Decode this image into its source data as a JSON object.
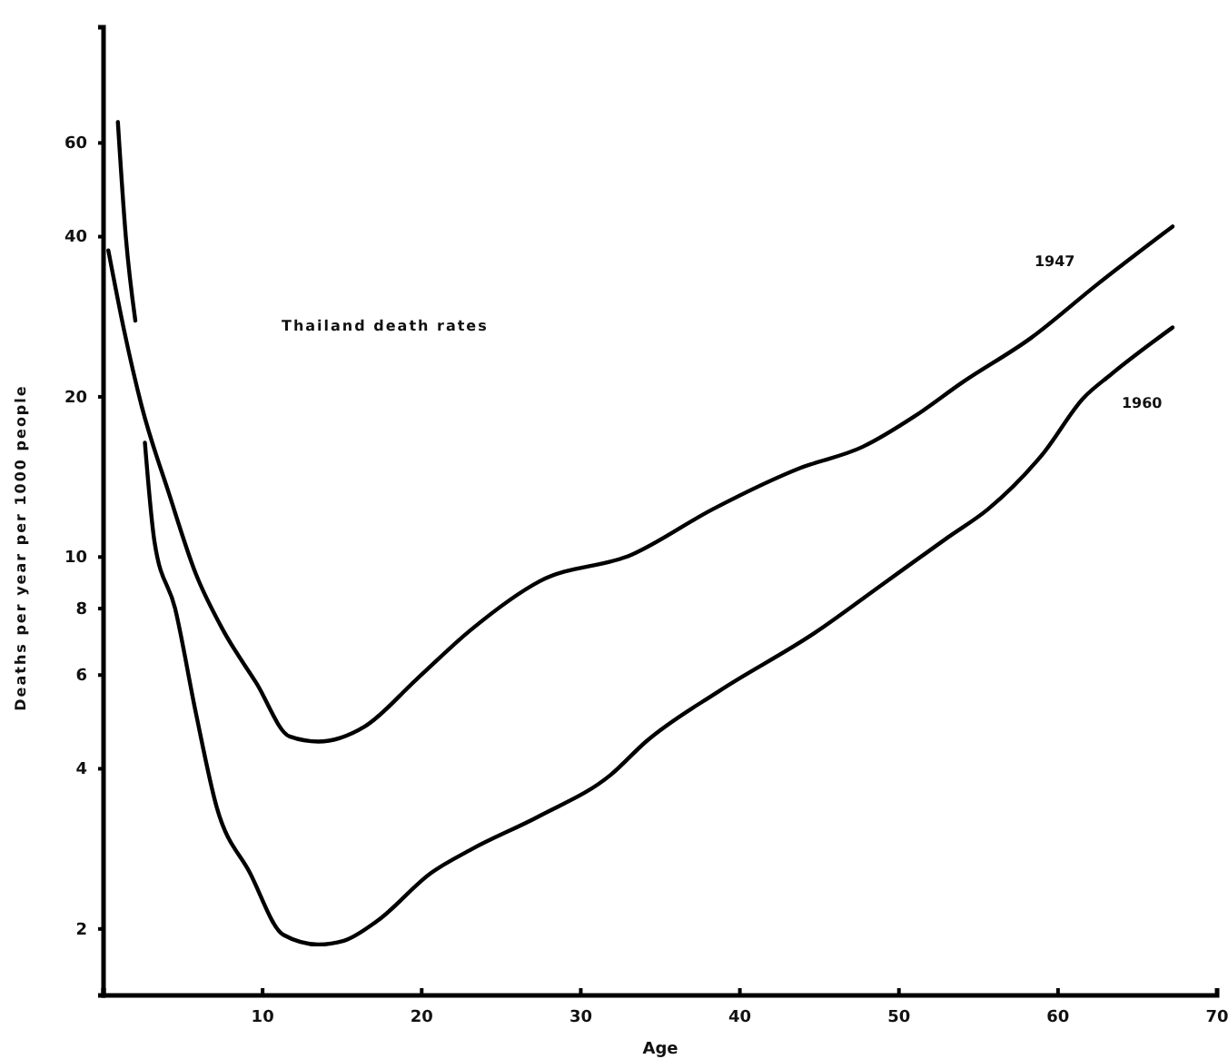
{
  "chart_data": {
    "type": "line",
    "xlabel": "Age",
    "ylabel": "Deaths per year per 1000 people",
    "log": "y",
    "xlim": [
      0,
      70
    ],
    "xticks": [
      10,
      20,
      30,
      40,
      50,
      60,
      70
    ],
    "ylim": [
      1.5,
      99
    ],
    "yticks": [
      2,
      4,
      6,
      8,
      10,
      20,
      40,
      60
    ],
    "grid": false,
    "legend": false,
    "marker": "none",
    "line_style": "solid",
    "annotations": [
      "Thailand death rates"
    ],
    "series": [
      {
        "name": "1947",
        "color": "#000000",
        "x": [
          0.3,
          1.3,
          2.4,
          4.1,
          5.8,
          7.5,
          9.6,
          11.7,
          13.5,
          16.4,
          19.7,
          23.1,
          27.4,
          33.2,
          38.3,
          43.8,
          47.7,
          51.0,
          54.0,
          58.3,
          62.5,
          67.2
        ],
        "values": [
          37.7,
          26.6,
          19.2,
          13.2,
          9.3,
          7.3,
          5.8,
          4.6,
          4.5,
          4.8,
          5.9,
          7.3,
          9.0,
          10.1,
          12.3,
          14.7,
          16.1,
          18.4,
          21.3,
          25.8,
          32.6,
          41.8
        ]
      },
      {
        "name": "1960",
        "color": "#000000",
        "x": [
          2.6,
          3.2,
          4.5,
          5.8,
          7.1,
          9.2,
          11.3,
          13.5,
          15.1,
          17.2,
          20.6,
          23.1,
          27.4,
          31.9,
          34.1,
          38.7,
          44.7,
          49.0,
          53.1,
          55.6,
          59.1,
          61.6,
          63.3,
          67.2
        ],
        "values": [
          16.4,
          10.7,
          8.0,
          5.1,
          3.4,
          2.55,
          1.95,
          1.87,
          1.9,
          2.07,
          2.55,
          2.82,
          3.26,
          3.9,
          4.5,
          5.6,
          7.2,
          8.9,
          10.9,
          12.3,
          15.7,
          19.9,
          22.0,
          27.0
        ]
      },
      {
        "color": "#000000",
        "x": [
          0.9,
          1.4,
          2.0
        ],
        "values": [
          65.7,
          40,
          27.8
        ]
      }
    ]
  }
}
